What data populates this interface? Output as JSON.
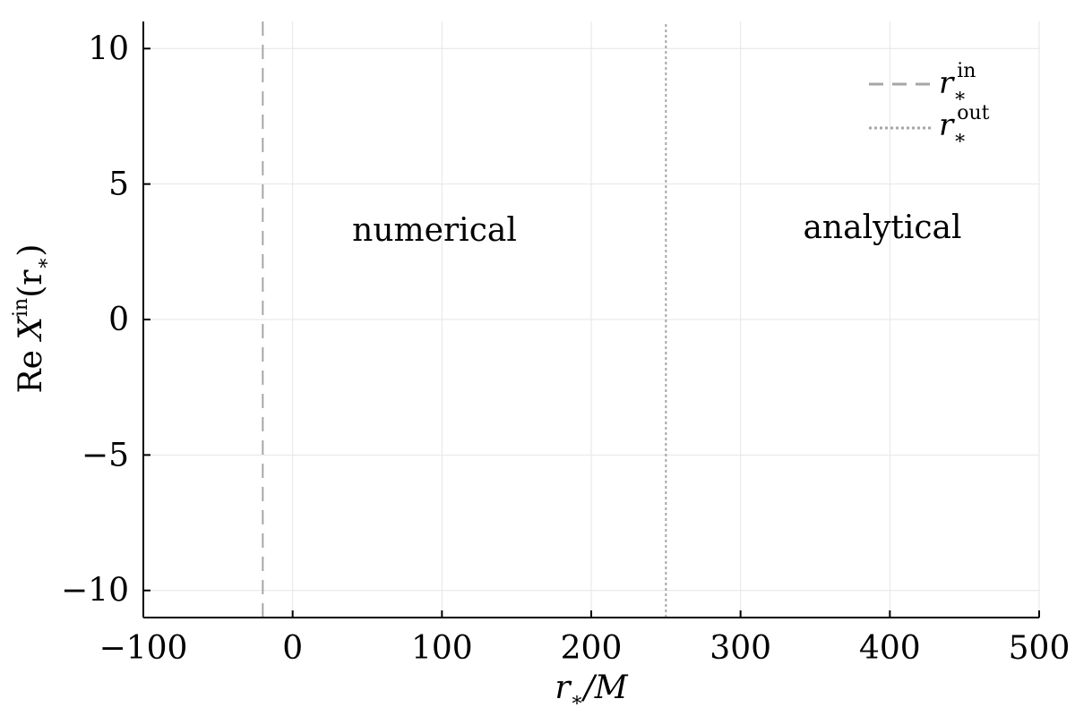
{
  "chart_data": {
    "type": "line",
    "xlabel_base": "r",
    "xlabel_sub": "∗",
    "xlabel_tail": "/M",
    "ylabel_prefix": "Re ",
    "ylabel_var": "X",
    "ylabel_sup": "in",
    "ylabel_arg": "(r",
    "ylabel_arg_sub": "∗",
    "ylabel_close": ")",
    "xlim": [
      -100,
      500
    ],
    "ylim": [
      -11,
      11
    ],
    "xticks": [
      -100,
      0,
      100,
      200,
      300,
      400,
      500
    ],
    "xtick_labels": [
      "−100",
      "0",
      "100",
      "200",
      "300",
      "400",
      "500"
    ],
    "yticks": [
      -10,
      -5,
      0,
      5,
      10
    ],
    "ytick_labels": [
      "−10",
      "−5",
      "0",
      "5",
      "10"
    ],
    "grid": true,
    "legend_position": "top-right",
    "series": [
      {
        "name_base": "r",
        "name_sub": "∗",
        "name_sup": "in",
        "style": "dashed",
        "color": "#a6a6a6",
        "x": [
          -20,
          -20
        ],
        "y": [
          -11,
          11
        ]
      },
      {
        "name_base": "r",
        "name_sub": "∗",
        "name_sup": "out",
        "style": "dotted",
        "color": "#a6a6a6",
        "x": [
          250,
          250
        ],
        "y": [
          -11,
          11
        ]
      }
    ],
    "annotations": [
      {
        "text": "numerical",
        "x": 95,
        "y": 2.9
      },
      {
        "text": "analytical",
        "x": 395,
        "y": 3.0
      }
    ]
  }
}
